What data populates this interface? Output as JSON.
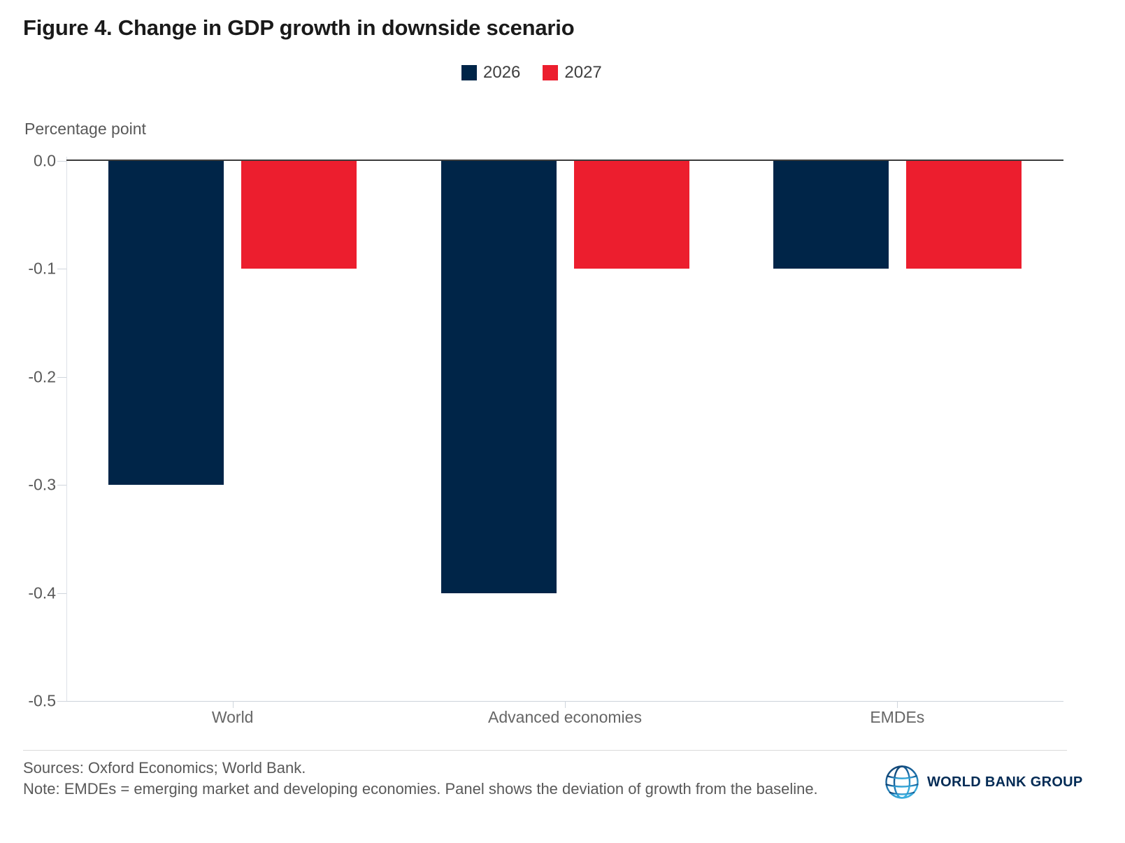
{
  "title": "Figure 4. Change in GDP growth in downside scenario",
  "y_axis_title": "Percentage point",
  "legend": {
    "items": [
      {
        "label": "2026",
        "color": "#002548"
      },
      {
        "label": "2027",
        "color": "#EC1E2E"
      }
    ]
  },
  "chart_data": {
    "type": "bar",
    "categories": [
      "World",
      "Advanced economies",
      "EMDEs"
    ],
    "series": [
      {
        "name": "2026",
        "color": "#002548",
        "values": [
          -0.3,
          -0.4,
          -0.1
        ]
      },
      {
        "name": "2027",
        "color": "#EC1E2E",
        "values": [
          -0.1,
          -0.1,
          -0.1
        ]
      }
    ],
    "title": "Figure 4. Change in GDP growth in downside scenario",
    "xlabel": "",
    "ylabel": "Percentage point",
    "ylim": [
      -0.5,
      0
    ],
    "yticks": [
      0,
      -0.1,
      -0.2,
      -0.3,
      -0.4,
      -0.5
    ],
    "ytick_labels": [
      "0.0",
      "-0.1",
      "-0.2",
      "-0.3",
      "-0.4",
      "-0.5"
    ],
    "grid": false,
    "legend_position": "top-center"
  },
  "footer": {
    "sources": "Sources: Oxford Economics; World Bank.",
    "note": "Note: EMDEs = emerging market and developing economies. Panel shows the deviation of growth from the baseline.",
    "brand": "WORLD BANK GROUP"
  },
  "icons": {
    "globe": "world-bank-globe-icon"
  }
}
